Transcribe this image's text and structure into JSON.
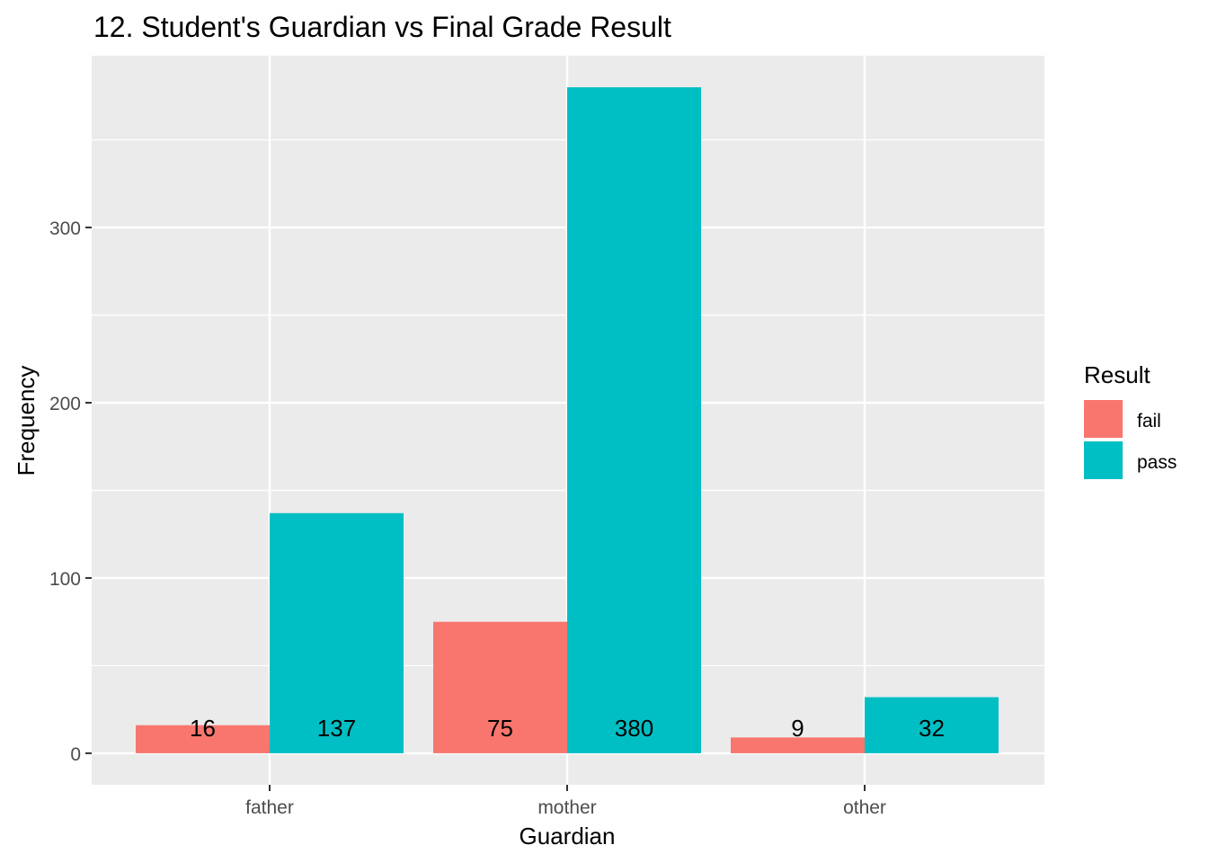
{
  "chart_data": {
    "type": "bar",
    "title": "12. Student's Guardian vs Final Grade Result",
    "xlabel": "Guardian",
    "ylabel": "Frequency",
    "categories": [
      "father",
      "mother",
      "other"
    ],
    "series": [
      {
        "name": "fail",
        "values": [
          16,
          75,
          9
        ],
        "color": "#F8766D"
      },
      {
        "name": "pass",
        "values": [
          137,
          380,
          32
        ],
        "color": "#00BFC4"
      }
    ],
    "data_labels": [
      [
        "16",
        "75",
        "9"
      ],
      [
        "137",
        "380",
        "32"
      ]
    ],
    "ylim": [
      -18,
      398
    ],
    "yticks": [
      0,
      100,
      200,
      300
    ],
    "ytick_labels": [
      "0",
      "100",
      "200",
      "300"
    ],
    "grid": true,
    "legend": {
      "title": "Result",
      "entries": [
        "fail",
        "pass"
      ],
      "placement": "right"
    },
    "colors": {
      "panel_background": "#EBEBEB",
      "gridline": "#FFFFFF"
    }
  }
}
